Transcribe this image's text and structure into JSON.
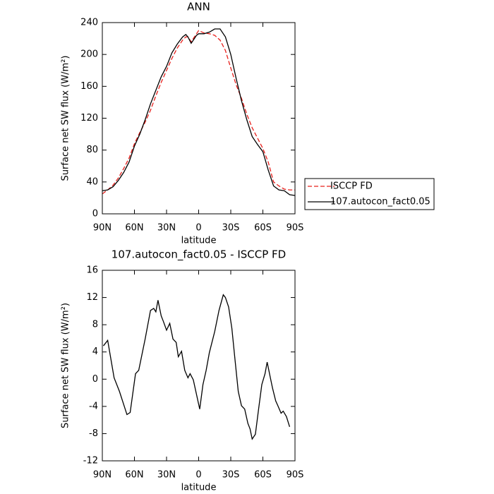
{
  "chart_data": [
    {
      "type": "line",
      "title": "ANN",
      "xlabel": "latitude",
      "ylabel": "Surface net SW flux (W/m²)",
      "x": [
        90,
        85,
        80,
        75,
        70,
        65,
        60,
        55,
        50,
        45,
        40,
        35,
        30,
        25,
        20,
        15,
        12,
        10,
        7,
        5,
        2,
        0,
        -5,
        -10,
        -15,
        -20,
        -25,
        -30,
        -35,
        -40,
        -45,
        -50,
        -55,
        -60,
        -65,
        -70,
        -75,
        -80,
        -85,
        -90
      ],
      "series": [
        {
          "name": "ISCCP FD",
          "color": "#e8201c",
          "linestyle": "dashed",
          "values": [
            25,
            30,
            36,
            45,
            57,
            70,
            88,
            102,
            115,
            130,
            148,
            165,
            180,
            195,
            208,
            218,
            222,
            222,
            216,
            220,
            226,
            230,
            227,
            226,
            224,
            218,
            205,
            183,
            162,
            145,
            125,
            108,
            95,
            82,
            65,
            40,
            35,
            31,
            30,
            30
          ]
        },
        {
          "name": "107.autocon_fact0.05",
          "color": "#000000",
          "linestyle": "solid",
          "values": [
            29,
            30,
            34,
            42,
            52,
            65,
            85,
            100,
            118,
            138,
            155,
            172,
            185,
            202,
            213,
            222,
            225,
            222,
            214,
            218,
            224,
            226,
            226,
            228,
            232,
            232,
            222,
            200,
            170,
            142,
            118,
            97,
            87,
            78,
            55,
            35,
            30,
            29,
            24,
            23
          ]
        }
      ],
      "xlim": [
        90,
        -90
      ],
      "xticks": [
        {
          "value": 90,
          "label": "90N"
        },
        {
          "value": 60,
          "label": "60N"
        },
        {
          "value": 30,
          "label": "30N"
        },
        0,
        {
          "value": -30,
          "label": "30S"
        },
        {
          "value": -60,
          "label": "60S"
        },
        {
          "value": -90,
          "label": "90S"
        }
      ],
      "ylim": [
        0,
        240
      ],
      "yticks": [
        0,
        40,
        80,
        120,
        160,
        200,
        240
      ],
      "legend": "right"
    },
    {
      "type": "line",
      "title": "107.autocon_fact0.05 - ISCCP FD",
      "xlabel": "latitude",
      "ylabel": "Surface net SW flux (W/m²)",
      "x": [
        89,
        85,
        79,
        74,
        67,
        64,
        59,
        56,
        50,
        45,
        42,
        40,
        38,
        35,
        33,
        30,
        27,
        24,
        21,
        19,
        16,
        13,
        10,
        8,
        5,
        -1,
        -4,
        -7,
        -10,
        -15,
        -19,
        -23,
        -25,
        -28,
        -31,
        -34,
        -37,
        -40,
        -43,
        -46,
        -48,
        -50,
        -53,
        -56,
        -59,
        -62,
        -64,
        -67,
        -69,
        -72,
        -74,
        -77,
        -79,
        -82,
        -85
      ],
      "series": [
        {
          "name": "107.autocon_fact0.05 - ISCCP FD",
          "color": "#000000",
          "linestyle": "solid",
          "values": [
            4.9,
            5.7,
            0.2,
            -1.8,
            -5.2,
            -4.9,
            0.8,
            1.3,
            5.9,
            10.1,
            10.4,
            9.9,
            11.6,
            9.3,
            8.5,
            7.2,
            8.2,
            5.9,
            5.4,
            3.3,
            4.1,
            1.3,
            0.2,
            0.8,
            -0.1,
            -4.4,
            -0.8,
            1.3,
            3.9,
            7.0,
            10.1,
            12.4,
            12.0,
            10.6,
            7.5,
            2.8,
            -1.8,
            -3.9,
            -4.4,
            -6.5,
            -7.3,
            -8.8,
            -8.1,
            -4.4,
            -0.8,
            0.8,
            2.5,
            0.2,
            -1.3,
            -3.2,
            -3.9,
            -5.0,
            -4.7,
            -5.5,
            -7.0
          ]
        }
      ],
      "xlim": [
        90,
        -90
      ],
      "xticks": [
        {
          "value": 90,
          "label": "90N"
        },
        {
          "value": 60,
          "label": "60N"
        },
        {
          "value": 30,
          "label": "30N"
        },
        0,
        {
          "value": -30,
          "label": "30S"
        },
        {
          "value": -60,
          "label": "60S"
        },
        {
          "value": -90,
          "label": "90S"
        }
      ],
      "ylim": [
        -12,
        16
      ],
      "yticks": [
        -12,
        -8,
        -4,
        0,
        4,
        8,
        12,
        16
      ]
    }
  ]
}
